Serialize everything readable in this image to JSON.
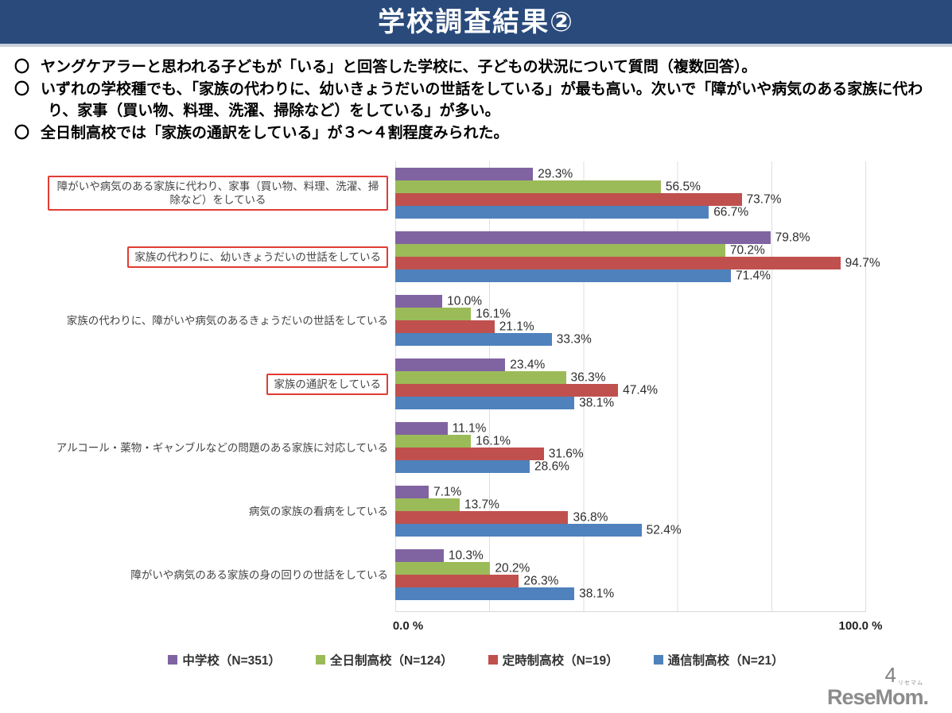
{
  "header": {
    "title": "学校調査結果②",
    "background_color": "#294A7B"
  },
  "bullet_marker": "〇",
  "bullets": [
    "ヤングケアラーと思われる子どもが「いる」と回答した学校に、子どもの状況について質問（複数回答）。",
    "いずれの学校種でも、「家族の代わりに、幼いきょうだいの世話をしている」が最も高い。次いで「障がいや病気のある家族に代わり、家事（買い物、料理、洗濯、掃除など）をしている」が多い。",
    "全日制高校では「家族の通訳をしている」が３～４割程度みられた。"
  ],
  "chart_data": {
    "type": "bar",
    "orientation": "horizontal",
    "grid": true,
    "xlim": [
      0,
      100
    ],
    "x_axis_labels": {
      "min": "0.0 %",
      "max": "100.0 %"
    },
    "legend_position": "bottom",
    "highlight_box_color": "#E23C33",
    "categories": [
      {
        "label": "障がいや病気のある家族に代わり、家事（買い物、料理、洗濯、掃除など）をしている",
        "highlighted": true
      },
      {
        "label": "家族の代わりに、幼いきょうだいの世話をしている",
        "highlighted": true
      },
      {
        "label": "家族の代わりに、障がいや病気のあるきょうだいの世話をしている",
        "highlighted": false
      },
      {
        "label": "家族の通訳をしている",
        "highlighted": true
      },
      {
        "label": "アルコール・薬物・ギャンブルなどの問題のある家族に対応している",
        "highlighted": false
      },
      {
        "label": "病気の家族の看病をしている",
        "highlighted": false
      },
      {
        "label": "障がいや病気のある家族の身の回りの世話をしている",
        "highlighted": false
      }
    ],
    "series": [
      {
        "name": "中学校（N=351）",
        "color": "#8064A2",
        "values": [
          29.3,
          79.8,
          10.0,
          23.4,
          11.1,
          7.1,
          10.3
        ]
      },
      {
        "name": "全日制高校（N=124）",
        "color": "#9BBB59",
        "values": [
          56.5,
          70.2,
          16.1,
          36.3,
          16.1,
          13.7,
          20.2
        ]
      },
      {
        "name": "定時制高校（N=19）",
        "color": "#C0504D",
        "values": [
          73.7,
          94.7,
          21.1,
          47.4,
          31.6,
          36.8,
          26.3
        ]
      },
      {
        "name": "通信制高校（N=21）",
        "color": "#4F81BD",
        "values": [
          66.7,
          71.4,
          33.3,
          38.1,
          28.6,
          52.4,
          38.1
        ]
      }
    ],
    "value_label_suffix": "%"
  },
  "footer": {
    "page_number": "4",
    "logo_text": "ReseMom.",
    "logo_ruby": "リセマム"
  }
}
